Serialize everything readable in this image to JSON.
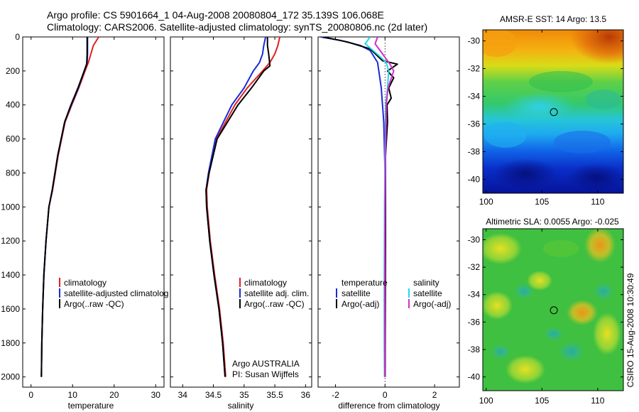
{
  "figure": {
    "title_line1": "Argo profile: CS 5901664_1 04-Aug-2008 20080804_172 35.139S 106.068E",
    "title_line2": "Climatology: CARS2006. Satellite-adjusted climatology: synTS_20080806.nc (2d later)",
    "side_credit": "CSIRO 15-Aug-2008 10:30:49"
  },
  "colors": {
    "climatology": "#e02020",
    "satellite": "#1a2bd6",
    "argo": "#000000",
    "salinity_satellite": "#22d8e8",
    "salinity_argo": "#d030d0"
  },
  "chart_data": [
    {
      "type": "line",
      "panel": "temperature",
      "xlabel": "temperature",
      "ylabel": "",
      "xlim": [
        -2,
        32
      ],
      "ylim": [
        2060,
        0
      ],
      "xticks": [
        0,
        10,
        20,
        30
      ],
      "yticks": [
        0,
        200,
        400,
        600,
        800,
        1000,
        1200,
        1400,
        1600,
        1800,
        2000
      ],
      "legend_position": "lower-right",
      "legend": [
        "climatology",
        "satellite-adjusted climatolog",
        "Argo(..raw -QC)"
      ],
      "series": [
        {
          "name": "climatology",
          "color_key": "climatology",
          "x": [
            16.3,
            15.0,
            14.4,
            13.8,
            13.0,
            11.5,
            9.8,
            8.2,
            6.5,
            5.2,
            4.3,
            3.6,
            3.1,
            2.8,
            2.6,
            2.5
          ],
          "y": [
            0,
            50,
            100,
            150,
            200,
            300,
            400,
            500,
            700,
            900,
            1000,
            1200,
            1400,
            1600,
            1800,
            2000
          ]
        },
        {
          "name": "satellite-adjusted climatolog",
          "color_key": "satellite",
          "x": [
            13.6,
            13.6,
            13.6,
            13.5,
            12.8,
            11.4,
            9.7,
            8.1,
            6.4,
            5.1,
            4.3,
            3.6,
            3.1,
            2.8,
            2.6,
            2.5
          ],
          "y": [
            0,
            50,
            100,
            150,
            200,
            300,
            400,
            500,
            700,
            900,
            1000,
            1200,
            1400,
            1600,
            1800,
            2000
          ]
        },
        {
          "name": "Argo(..raw -QC)",
          "color_key": "argo",
          "x": [
            13.5,
            13.5,
            13.5,
            13.4,
            12.8,
            11.3,
            9.6,
            8.1,
            6.4,
            5.1,
            4.3,
            3.6,
            3.1,
            2.8,
            2.6,
            2.5
          ],
          "y": [
            0,
            50,
            100,
            160,
            200,
            300,
            400,
            500,
            700,
            900,
            1000,
            1200,
            1400,
            1600,
            1800,
            2000
          ]
        }
      ]
    },
    {
      "type": "line",
      "panel": "salinity",
      "xlabel": "salinity",
      "ylabel": "",
      "xlim": [
        33.8,
        36.1
      ],
      "ylim": [
        2060,
        0
      ],
      "xticks": [
        34,
        34.5,
        35,
        35.5,
        36
      ],
      "legend_position": "lower-right",
      "legend": [
        "climatology",
        "satellite adj. clim.",
        "Argo(..raw -QC)"
      ],
      "annotation_lines": [
        "Argo AUSTRALIA",
        "PI: Susan Wijffels"
      ],
      "series": [
        {
          "name": "climatology",
          "color_key": "climatology",
          "x": [
            35.58,
            35.55,
            35.5,
            35.42,
            35.3,
            35.05,
            34.85,
            34.55,
            34.43,
            34.39,
            34.4,
            34.45,
            34.52,
            34.6,
            34.66,
            34.7
          ],
          "y": [
            0,
            50,
            100,
            150,
            200,
            300,
            400,
            600,
            800,
            900,
            1000,
            1200,
            1400,
            1600,
            1800,
            2000
          ]
        },
        {
          "name": "satellite adj. clim.",
          "color_key": "satellite",
          "x": [
            35.35,
            35.32,
            35.3,
            35.25,
            35.15,
            35.0,
            34.8,
            34.53,
            34.42,
            34.38,
            34.39,
            34.44,
            34.51,
            34.59,
            34.65,
            34.69
          ],
          "y": [
            0,
            50,
            100,
            150,
            200,
            300,
            400,
            600,
            800,
            900,
            1000,
            1200,
            1400,
            1600,
            1800,
            2000
          ]
        },
        {
          "name": "Argo(..raw -QC)",
          "color_key": "argo",
          "x": [
            35.38,
            35.38,
            35.4,
            35.42,
            35.32,
            35.12,
            34.9,
            34.56,
            34.43,
            34.38,
            34.39,
            34.44,
            34.51,
            34.59,
            34.65,
            34.69
          ],
          "y": [
            0,
            50,
            100,
            170,
            200,
            300,
            400,
            600,
            800,
            900,
            1000,
            1200,
            1400,
            1600,
            1800,
            2000
          ]
        }
      ]
    },
    {
      "type": "line",
      "panel": "difference",
      "xlabel": "difference from climatology",
      "ylabel": "",
      "xlim": [
        -2.7,
        3.0
      ],
      "ylim": [
        2060,
        0
      ],
      "xticks": [
        -2,
        0,
        2
      ],
      "zero_line": true,
      "legend_position": "lower",
      "legend_groups": [
        {
          "heading": "temperature",
          "items": [
            "satellite",
            "Argo(-adj)"
          ]
        },
        {
          "heading": "salinity",
          "items": [
            "satellite",
            "Argo(-adj)"
          ]
        }
      ],
      "series": [
        {
          "name": "temperature satellite",
          "color_key": "satellite",
          "x": [
            -2.6,
            -1.8,
            -1.0,
            -0.6,
            -0.3,
            -0.15,
            -0.05,
            0.0,
            0.0,
            0.0,
            0.0
          ],
          "y": [
            0,
            20,
            50,
            80,
            150,
            300,
            500,
            800,
            1200,
            1600,
            2000
          ]
        },
        {
          "name": "temperature Argo(-adj)",
          "color_key": "argo",
          "x": [
            -2.5,
            -1.5,
            -0.6,
            -0.1,
            0.5,
            0.1,
            0.35,
            0.15,
            0.25,
            0.08,
            0.1,
            0.02,
            0.02,
            0.0
          ],
          "y": [
            0,
            30,
            70,
            140,
            160,
            200,
            240,
            300,
            360,
            400,
            500,
            700,
            1200,
            2000
          ]
        },
        {
          "name": "salinity satellite",
          "color_key": "salinity_satellite",
          "x": [
            -0.6,
            -0.8,
            -0.4,
            0.05,
            0.15,
            0.1,
            0.03,
            0.0,
            -0.02,
            -0.03,
            -0.03,
            -0.02
          ],
          "y": [
            0,
            40,
            90,
            150,
            200,
            300,
            400,
            700,
            1000,
            1400,
            1800,
            2000
          ]
        },
        {
          "name": "salinity Argo(-adj)",
          "color_key": "salinity_argo",
          "x": [
            -0.3,
            -0.4,
            -0.1,
            0.2,
            0.35,
            0.12,
            0.05,
            0.02,
            0.0,
            -0.01,
            -0.01
          ],
          "y": [
            0,
            40,
            100,
            160,
            200,
            300,
            400,
            700,
            1000,
            1500,
            2000
          ]
        }
      ]
    },
    {
      "type": "heatmap",
      "panel": "sst_map",
      "title": "AMSR-E SST: 14 Argo: 13.5",
      "xlim": [
        99.7,
        112.3
      ],
      "ylim": [
        -41,
        -29.2
      ],
      "xticks": [
        100,
        105,
        110
      ],
      "yticks": [
        -30,
        -32,
        -34,
        -36,
        -38,
        -40
      ],
      "colormap": "jet",
      "marker": {
        "lon": 106.068,
        "lat": -35.139
      }
    },
    {
      "type": "heatmap",
      "panel": "sla_map",
      "title": "Altimetric SLA: 0.0055 Argo: -0.025",
      "xlim": [
        99.7,
        112.3
      ],
      "ylim": [
        -41,
        -29.2
      ],
      "xticks": [
        100,
        105,
        110
      ],
      "yticks": [
        -30,
        -32,
        -34,
        -36,
        -38,
        -40
      ],
      "colormap": "jet",
      "marker": {
        "lon": 106.068,
        "lat": -35.139
      }
    }
  ]
}
